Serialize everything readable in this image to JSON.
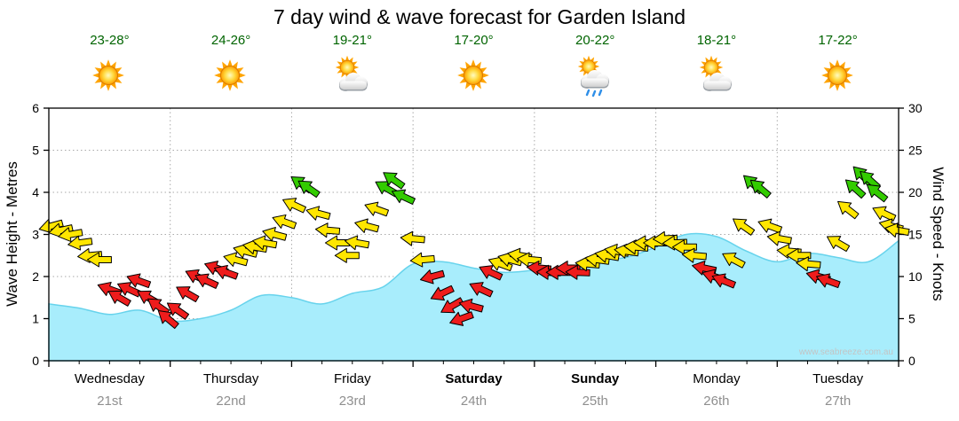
{
  "title": "7 day wind & wave forecast for Garden Island",
  "watermark": "www.seabreeze.com.au",
  "axes": {
    "left_label": "Wave Height - Metres",
    "right_label": "Wind Speed - Knots",
    "left_ticks": [
      0,
      1,
      2,
      3,
      4,
      5,
      6
    ],
    "right_ticks": [
      0,
      5,
      10,
      15,
      20,
      25,
      30
    ]
  },
  "days": [
    {
      "name": "Wednesday",
      "date": "21st",
      "temp": "23-28°",
      "icon": "sunny",
      "bold": false
    },
    {
      "name": "Thursday",
      "date": "22nd",
      "temp": "24-26°",
      "icon": "sunny",
      "bold": false
    },
    {
      "name": "Friday",
      "date": "23rd",
      "temp": "19-21°",
      "icon": "partly-cloudy",
      "bold": false
    },
    {
      "name": "Saturday",
      "date": "24th",
      "temp": "17-20°",
      "icon": "sunny",
      "bold": true
    },
    {
      "name": "Sunday",
      "date": "25th",
      "temp": "20-22°",
      "icon": "showers",
      "bold": true
    },
    {
      "name": "Monday",
      "date": "26th",
      "temp": "18-21°",
      "icon": "partly-cloudy",
      "bold": false
    },
    {
      "name": "Tuesday",
      "date": "27th",
      "temp": "17-22°",
      "icon": "sunny",
      "bold": false
    }
  ],
  "colors": {
    "wave_fill": "#a8edfc",
    "wave_stroke": "#67d3ec",
    "wind_light": "#ee1c1c",
    "wind_moderate": "#ffe600",
    "wind_fresh": "#33cc00",
    "arrow_outline": "#000000",
    "grid": "#aaaaaa",
    "frame": "#000000",
    "temp_text": "#006400",
    "date_text": "#8f8f8f",
    "watermark_text": "#c4c4c4"
  },
  "chart_data": {
    "type": "area+wind-arrows",
    "title": "7 day wind & wave forecast for Garden Island",
    "categories": [
      "Wednesday 21st",
      "Thursday 22nd",
      "Friday 23rd",
      "Saturday 24th",
      "Sunday 25th",
      "Monday 26th",
      "Tuesday 27th"
    ],
    "x_unit": "days (0-7)",
    "ylim_left_metres": [
      0,
      6
    ],
    "ylim_right_knots": [
      0,
      30
    ],
    "grid": "dotted, day boundaries and whole metres",
    "legend": "none",
    "wind_color_thresholds": {
      "red_below": 11.2,
      "green_at": 19.5
    },
    "wave_series": {
      "name": "Wave Height (m)",
      "points": [
        [
          0.0,
          1.35
        ],
        [
          0.25,
          1.25
        ],
        [
          0.5,
          1.1
        ],
        [
          0.75,
          1.2
        ],
        [
          1.0,
          0.95
        ],
        [
          1.25,
          1.0
        ],
        [
          1.5,
          1.2
        ],
        [
          1.75,
          1.55
        ],
        [
          2.0,
          1.5
        ],
        [
          2.25,
          1.35
        ],
        [
          2.5,
          1.6
        ],
        [
          2.75,
          1.75
        ],
        [
          3.0,
          2.3
        ],
        [
          3.25,
          2.35
        ],
        [
          3.5,
          2.2
        ],
        [
          3.75,
          2.1
        ],
        [
          4.0,
          2.15
        ],
        [
          4.25,
          2.2
        ],
        [
          4.5,
          2.4
        ],
        [
          4.75,
          2.45
        ],
        [
          5.0,
          2.7
        ],
        [
          5.25,
          3.0
        ],
        [
          5.5,
          2.95
        ],
        [
          5.75,
          2.6
        ],
        [
          6.0,
          2.35
        ],
        [
          6.25,
          2.55
        ],
        [
          6.5,
          2.45
        ],
        [
          6.75,
          2.35
        ],
        [
          7.0,
          2.85
        ]
      ]
    },
    "wind_series": {
      "name": "Wind Speed (knots)",
      "point_format": "[day, knots, arrow_rotation_deg]",
      "points": [
        [
          0.02,
          16,
          165
        ],
        [
          0.1,
          15.5,
          168
        ],
        [
          0.18,
          15,
          170
        ],
        [
          0.26,
          14,
          172
        ],
        [
          0.34,
          12.5,
          175
        ],
        [
          0.42,
          12,
          180
        ],
        [
          0.5,
          8.5,
          200
        ],
        [
          0.58,
          7.5,
          210
        ],
        [
          0.66,
          8.5,
          205
        ],
        [
          0.74,
          9.5,
          200
        ],
        [
          0.82,
          7.5,
          210
        ],
        [
          0.9,
          6.5,
          215
        ],
        [
          0.98,
          5,
          220
        ],
        [
          1.06,
          6,
          215
        ],
        [
          1.14,
          8,
          210
        ],
        [
          1.22,
          10,
          205
        ],
        [
          1.3,
          9.5,
          205
        ],
        [
          1.38,
          11,
          200
        ],
        [
          1.46,
          10.5,
          200
        ],
        [
          1.54,
          12,
          195
        ],
        [
          1.62,
          13,
          195
        ],
        [
          1.7,
          13.5,
          190
        ],
        [
          1.78,
          14,
          190
        ],
        [
          1.86,
          15,
          195
        ],
        [
          1.94,
          16.5,
          200
        ],
        [
          2.02,
          18.5,
          205
        ],
        [
          2.08,
          21,
          215
        ],
        [
          2.14,
          20.5,
          215
        ],
        [
          2.22,
          17.5,
          195
        ],
        [
          2.3,
          15.5,
          185
        ],
        [
          2.38,
          14,
          180
        ],
        [
          2.46,
          12.5,
          180
        ],
        [
          2.54,
          14,
          190
        ],
        [
          2.62,
          16,
          195
        ],
        [
          2.7,
          18,
          200
        ],
        [
          2.78,
          20.5,
          210
        ],
        [
          2.84,
          21.5,
          215
        ],
        [
          2.92,
          19.5,
          205
        ],
        [
          3.0,
          14.5,
          185
        ],
        [
          3.08,
          12,
          175
        ],
        [
          3.16,
          10,
          165
        ],
        [
          3.24,
          8,
          155
        ],
        [
          3.32,
          6.5,
          150
        ],
        [
          3.4,
          5,
          160
        ],
        [
          3.48,
          6.5,
          195
        ],
        [
          3.56,
          8.5,
          205
        ],
        [
          3.64,
          10.5,
          205
        ],
        [
          3.72,
          11.5,
          200
        ],
        [
          3.8,
          12,
          195
        ],
        [
          3.88,
          12.5,
          190
        ],
        [
          3.96,
          12,
          185
        ],
        [
          4.04,
          11,
          185
        ],
        [
          4.12,
          10.5,
          182
        ],
        [
          4.2,
          10.5,
          180
        ],
        [
          4.28,
          11,
          180
        ],
        [
          4.36,
          10.5,
          182
        ],
        [
          4.44,
          11.5,
          185
        ],
        [
          4.52,
          12,
          188
        ],
        [
          4.6,
          12.5,
          190
        ],
        [
          4.68,
          13,
          190
        ],
        [
          4.76,
          13,
          188
        ],
        [
          4.84,
          13.5,
          185
        ],
        [
          4.92,
          14,
          182
        ],
        [
          5.0,
          14,
          180
        ],
        [
          5.08,
          14.5,
          178
        ],
        [
          5.16,
          14,
          178
        ],
        [
          5.24,
          13.5,
          180
        ],
        [
          5.32,
          12.5,
          185
        ],
        [
          5.4,
          11,
          192
        ],
        [
          5.48,
          10,
          198
        ],
        [
          5.56,
          9.5,
          202
        ],
        [
          5.64,
          12,
          208
        ],
        [
          5.72,
          16,
          215
        ],
        [
          5.8,
          21,
          222
        ],
        [
          5.86,
          20.5,
          220
        ],
        [
          5.94,
          16,
          200
        ],
        [
          6.02,
          14.5,
          190
        ],
        [
          6.1,
          13,
          185
        ],
        [
          6.18,
          12.5,
          180
        ],
        [
          6.26,
          11.5,
          185
        ],
        [
          6.34,
          10,
          195
        ],
        [
          6.42,
          9.5,
          200
        ],
        [
          6.5,
          14,
          210
        ],
        [
          6.58,
          18,
          218
        ],
        [
          6.64,
          20.5,
          222
        ],
        [
          6.7,
          22,
          225
        ],
        [
          6.76,
          21.5,
          222
        ],
        [
          6.82,
          20,
          218
        ],
        [
          6.88,
          17.5,
          205
        ],
        [
          6.94,
          16,
          195
        ],
        [
          6.99,
          15.5,
          190
        ]
      ]
    }
  }
}
